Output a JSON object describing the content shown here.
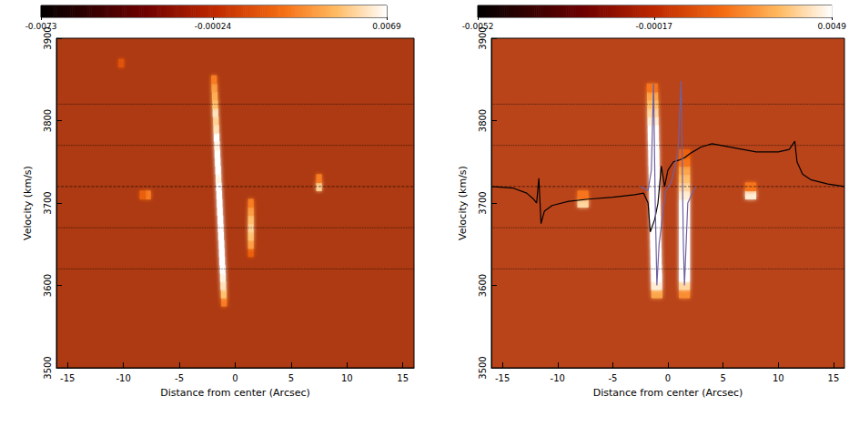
{
  "chart_data": [
    {
      "type": "heatmap",
      "x_label": "Distance from center (Arcsec)",
      "y_label": "Velocity (km/s)",
      "xlim": [
        -16,
        16
      ],
      "xticks": [
        -15,
        -10,
        -5,
        0,
        5,
        10,
        15
      ],
      "ylim": [
        3500,
        3900
      ],
      "yticks": [
        3500,
        3600,
        3700,
        3800,
        3900
      ],
      "colorbar": {
        "range": [
          -0.0073,
          0.0069
        ],
        "ticks": [
          -0.0073,
          -0.00024,
          0.0069
        ]
      },
      "cell_size": [
        0.5,
        10
      ],
      "cells": [
        [
          -1.0,
          3580,
          0.003
        ],
        [
          -1.03,
          3590,
          0.005
        ],
        [
          -1.07,
          3600,
          0.006
        ],
        [
          -1.1,
          3610,
          0.0065
        ],
        [
          -1.13,
          3620,
          0.0069
        ],
        [
          -1.17,
          3630,
          0.0069
        ],
        [
          -1.2,
          3640,
          0.0069
        ],
        [
          -1.23,
          3650,
          0.0069
        ],
        [
          -1.27,
          3660,
          0.0069
        ],
        [
          -1.3,
          3670,
          0.0069
        ],
        [
          -1.33,
          3680,
          0.0069
        ],
        [
          -1.37,
          3690,
          0.0069
        ],
        [
          -1.4,
          3700,
          0.0069
        ],
        [
          -1.43,
          3710,
          0.0069
        ],
        [
          -1.47,
          3720,
          0.0069
        ],
        [
          -1.5,
          3730,
          0.0065
        ],
        [
          -1.53,
          3740,
          0.0069
        ],
        [
          -1.57,
          3750,
          0.0069
        ],
        [
          -1.6,
          3760,
          0.0069
        ],
        [
          -1.63,
          3770,
          0.0065
        ],
        [
          -1.67,
          3780,
          0.0069
        ],
        [
          -1.7,
          3790,
          0.006
        ],
        [
          -1.73,
          3800,
          0.0055
        ],
        [
          -1.77,
          3810,
          0.006
        ],
        [
          -1.8,
          3820,
          0.005
        ],
        [
          -1.83,
          3830,
          0.0045
        ],
        [
          -1.87,
          3840,
          0.004
        ],
        [
          -1.9,
          3850,
          0.003
        ],
        [
          1.4,
          3640,
          0.002
        ],
        [
          1.4,
          3650,
          0.004
        ],
        [
          1.4,
          3660,
          0.005
        ],
        [
          1.4,
          3670,
          0.0055
        ],
        [
          1.4,
          3680,
          0.005
        ],
        [
          1.4,
          3690,
          0.004
        ],
        [
          1.4,
          3700,
          0.003
        ],
        [
          -7.8,
          3710,
          0.003
        ],
        [
          -8.3,
          3710,
          0.002
        ],
        [
          7.5,
          3720,
          0.0055
        ],
        [
          7.5,
          3730,
          0.003
        ],
        [
          -10.2,
          3870,
          0.0015
        ]
      ],
      "reference_lines": [
        {
          "value": 3620,
          "line_style": "dotted"
        },
        {
          "value": 3670,
          "line_style": "dotted"
        },
        {
          "value": 3720,
          "line_style": "dashed"
        },
        {
          "value": 3770,
          "line_style": "dotted"
        },
        {
          "value": 3820,
          "line_style": "dotted"
        }
      ],
      "series": []
    },
    {
      "type": "heatmap",
      "x_label": "Distance from center (Arcsec)",
      "y_label": "Velocity (km/s)",
      "xlim": [
        -16,
        16
      ],
      "xticks": [
        -15,
        -10,
        -5,
        0,
        5,
        10,
        15
      ],
      "ylim": [
        3500,
        3900
      ],
      "yticks": [
        3500,
        3600,
        3700,
        3800,
        3900
      ],
      "colorbar": {
        "range": [
          -0.0052,
          0.0049
        ],
        "ticks": [
          -0.0052,
          -0.00017,
          0.0049
        ]
      },
      "cell_size": [
        1,
        10
      ],
      "cells": [
        [
          -1.0,
          3590,
          0.003
        ],
        [
          -1.02,
          3600,
          0.0045
        ],
        [
          -1.03,
          3610,
          0.0049
        ],
        [
          -1.05,
          3620,
          0.0049
        ],
        [
          -1.07,
          3630,
          0.0049
        ],
        [
          -1.08,
          3640,
          0.0049
        ],
        [
          -1.1,
          3650,
          0.0049
        ],
        [
          -1.12,
          3660,
          0.0049
        ],
        [
          -1.13,
          3670,
          0.0049
        ],
        [
          -1.15,
          3680,
          0.0049
        ],
        [
          -1.17,
          3690,
          0.0049
        ],
        [
          -1.18,
          3700,
          0.0049
        ],
        [
          -1.2,
          3710,
          0.0049
        ],
        [
          -1.22,
          3720,
          0.0049
        ],
        [
          -1.23,
          3730,
          0.0049
        ],
        [
          -1.25,
          3740,
          0.0049
        ],
        [
          -1.27,
          3750,
          0.0049
        ],
        [
          -1.28,
          3760,
          0.0049
        ],
        [
          -1.3,
          3770,
          0.0049
        ],
        [
          -1.32,
          3780,
          0.0049
        ],
        [
          -1.33,
          3790,
          0.0049
        ],
        [
          -1.35,
          3800,
          0.0045
        ],
        [
          -1.37,
          3810,
          0.004
        ],
        [
          -1.38,
          3820,
          0.0035
        ],
        [
          -1.4,
          3830,
          0.003
        ],
        [
          -1.42,
          3840,
          0.002
        ],
        [
          1.5,
          3590,
          0.0025
        ],
        [
          1.5,
          3600,
          0.004
        ],
        [
          1.5,
          3610,
          0.0049
        ],
        [
          1.5,
          3620,
          0.0049
        ],
        [
          1.5,
          3630,
          0.0049
        ],
        [
          1.5,
          3640,
          0.0049
        ],
        [
          1.5,
          3650,
          0.0049
        ],
        [
          1.5,
          3660,
          0.0049
        ],
        [
          1.5,
          3670,
          0.0049
        ],
        [
          1.5,
          3680,
          0.0049
        ],
        [
          1.5,
          3690,
          0.0049
        ],
        [
          1.5,
          3700,
          0.0049
        ],
        [
          1.5,
          3710,
          0.0045
        ],
        [
          1.5,
          3720,
          0.004
        ],
        [
          1.5,
          3730,
          0.0035
        ],
        [
          1.5,
          3740,
          0.003
        ],
        [
          1.5,
          3750,
          0.002
        ],
        [
          1.5,
          3760,
          0.0015
        ],
        [
          -7.7,
          3700,
          0.004
        ],
        [
          -7.7,
          3710,
          0.002
        ],
        [
          7.5,
          3710,
          0.0045
        ],
        [
          7.5,
          3720,
          0.002
        ]
      ],
      "reference_lines": [
        {
          "value": 3620,
          "line_style": "dotted"
        },
        {
          "value": 3670,
          "line_style": "dotted"
        },
        {
          "value": 3720,
          "line_style": "dashed"
        },
        {
          "value": 3770,
          "line_style": "dotted"
        },
        {
          "value": 3820,
          "line_style": "dotted"
        }
      ],
      "series": [
        {
          "type": "line",
          "color": "#000000",
          "values": [
            [
              -16,
              3720
            ],
            [
              -14,
              3718
            ],
            [
              -12.8,
              3712
            ],
            [
              -12.2,
              3705
            ],
            [
              -11.9,
              3700
            ],
            [
              -11.7,
              3730
            ],
            [
              -11.5,
              3675
            ],
            [
              -11.2,
              3690
            ],
            [
              -10.5,
              3697
            ],
            [
              -9,
              3702
            ],
            [
              -7,
              3705
            ],
            [
              -5,
              3707
            ],
            [
              -3,
              3710
            ],
            [
              -2.2,
              3712
            ],
            [
              -1.8,
              3700
            ],
            [
              -1.6,
              3665
            ],
            [
              -1.2,
              3680
            ],
            [
              -0.9,
              3700
            ],
            [
              -0.6,
              3745
            ],
            [
              -0.3,
              3720
            ],
            [
              0,
              3740
            ],
            [
              0.5,
              3750
            ],
            [
              1,
              3752
            ],
            [
              1.5,
              3755
            ],
            [
              2,
              3760
            ],
            [
              3,
              3768
            ],
            [
              4,
              3772
            ],
            [
              6,
              3767
            ],
            [
              8,
              3762
            ],
            [
              10,
              3762
            ],
            [
              11,
              3765
            ],
            [
              11.5,
              3775
            ],
            [
              11.7,
              3750
            ],
            [
              12.2,
              3735
            ],
            [
              13,
              3728
            ],
            [
              14.5,
              3723
            ],
            [
              16,
              3720
            ]
          ]
        },
        {
          "type": "line",
          "color": "#7060a0",
          "values": [
            [
              -2.5,
              3720
            ],
            [
              -1.8,
              3715
            ],
            [
              -1.5,
              3740
            ],
            [
              -1.3,
              3845
            ],
            [
              -1.15,
              3700
            ],
            [
              -1.0,
              3600
            ],
            [
              -0.8,
              3650
            ],
            [
              -0.2,
              3715
            ],
            [
              0.3,
              3725
            ],
            [
              0.9,
              3760
            ],
            [
              1.2,
              3848
            ],
            [
              1.4,
              3650
            ],
            [
              1.5,
              3600
            ],
            [
              1.8,
              3700
            ],
            [
              2.5,
              3720
            ]
          ]
        }
      ]
    }
  ]
}
